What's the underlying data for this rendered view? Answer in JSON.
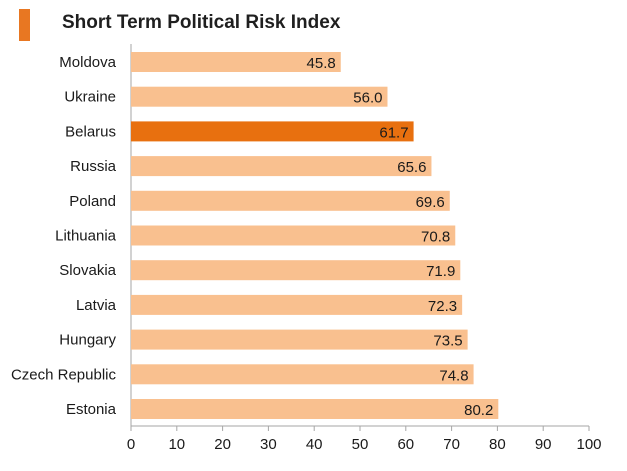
{
  "chart_data": {
    "type": "bar",
    "orientation": "horizontal",
    "title": "Short Term Political Risk Index",
    "categories": [
      "Moldova",
      "Ukraine",
      "Belarus",
      "Russia",
      "Poland",
      "Lithuania",
      "Slovakia",
      "Latvia",
      "Hungary",
      "Czech Republic",
      "Estonia"
    ],
    "values": [
      45.8,
      56.0,
      61.7,
      65.6,
      69.6,
      70.8,
      71.9,
      72.3,
      73.5,
      74.8,
      80.2
    ],
    "value_labels": [
      "45.8",
      "56.0",
      "61.7",
      "65.6",
      "69.6",
      "70.8",
      "71.9",
      "72.3",
      "73.5",
      "74.8",
      "80.2"
    ],
    "highlight_category": "Belarus",
    "xlim": [
      0,
      100
    ],
    "xticks": [
      0,
      10,
      20,
      30,
      40,
      50,
      60,
      70,
      80,
      90,
      100
    ],
    "grid": false,
    "xlabel": "",
    "ylabel": ""
  },
  "colors": {
    "bar": "#f9c08f",
    "highlight": "#e8700f",
    "accent": "#e87722",
    "axis": "#a6a6a6",
    "text": "#1a1a1a"
  }
}
